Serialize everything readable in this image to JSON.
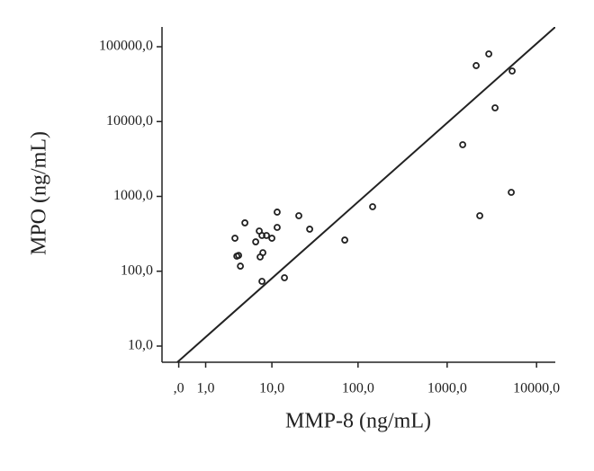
{
  "chart_data": {
    "type": "scatter",
    "x_label": "MMP-8 (ng/mL)",
    "y_label": "MPO (ng/mL)",
    "xscale": "log1p",
    "yscale": "log",
    "xlim": [
      -0.35,
      16200
    ],
    "ylim": [
      6.08,
      183700
    ],
    "xticks": [
      {
        "value": 0,
        "label": ",0"
      },
      {
        "value": 1,
        "label": "1,0"
      },
      {
        "value": 10,
        "label": "10,0"
      },
      {
        "value": 100,
        "label": "100,0"
      },
      {
        "value": 1000,
        "label": "1000,0"
      },
      {
        "value": 10000,
        "label": "10000,0"
      }
    ],
    "yticks": [
      {
        "value": 10,
        "label": "10,0"
      },
      {
        "value": 100,
        "label": "100,0"
      },
      {
        "value": 1000,
        "label": "1000,0"
      },
      {
        "value": 10000,
        "label": "10000,0"
      },
      {
        "value": 100000,
        "label": "100000,0"
      }
    ],
    "color": "#222222",
    "x": [
      2924,
      2113,
      5335,
      3436,
      1493,
      5215,
      2318,
      146,
      70.8,
      28.1,
      21.0,
      11.6,
      11.6,
      10.0,
      8.57,
      7.52,
      6.95,
      6.25,
      7.72,
      7.13,
      4.49,
      3.25,
      3.67,
      3.46,
      3.89,
      7.52,
      14.2
    ],
    "y": [
      80200,
      56000,
      47400,
      15240,
      4910,
      1133,
      552,
      728,
      261,
      365,
      552,
      617,
      385,
      276,
      300,
      300,
      345,
      247,
      177,
      155,
      443,
      276,
      163,
      159,
      117,
      73.3,
      81.8
    ]
  }
}
